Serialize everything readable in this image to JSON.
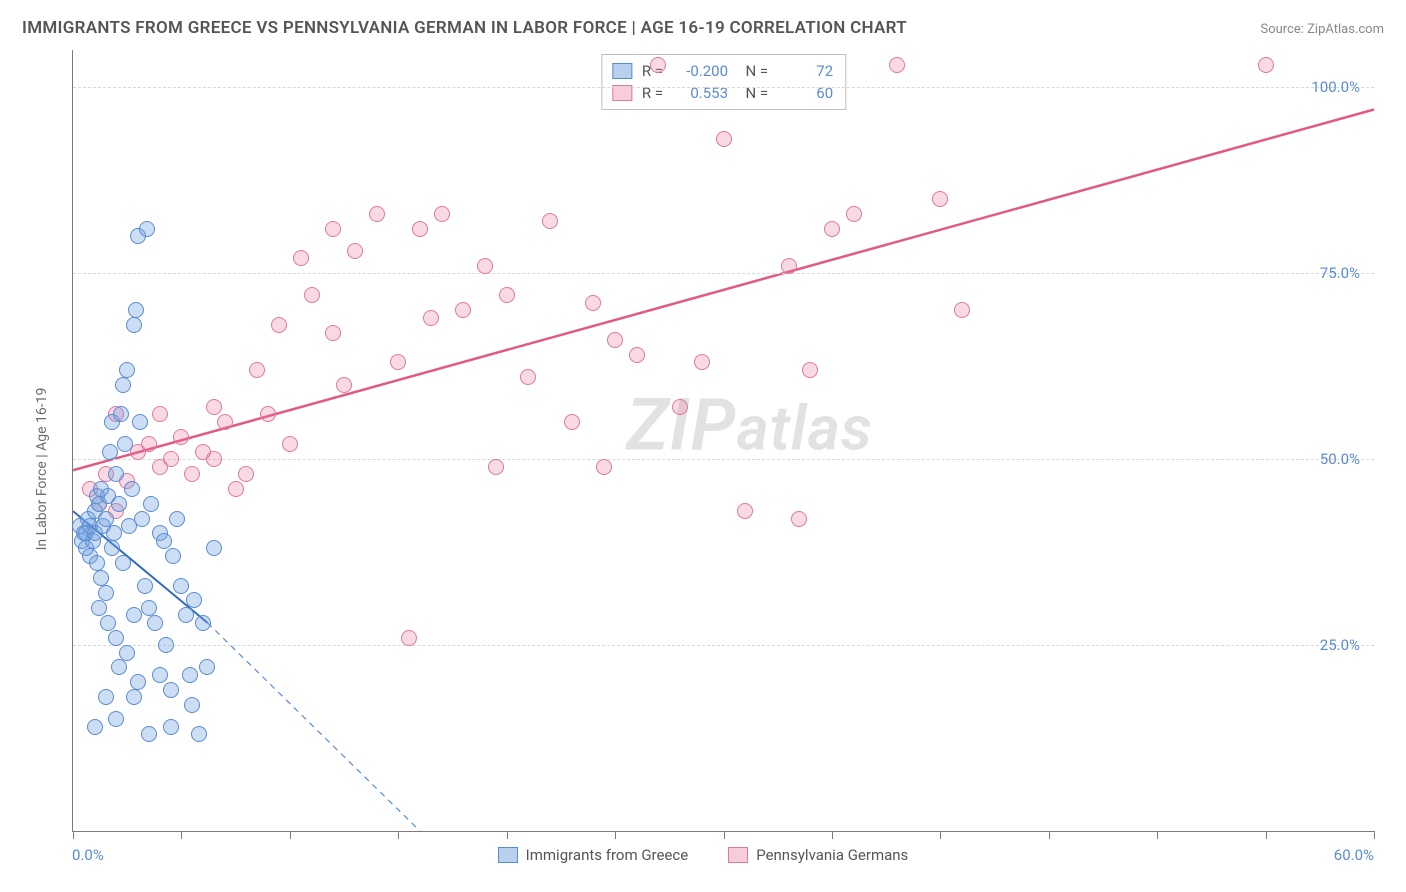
{
  "title": "IMMIGRANTS FROM GREECE VS PENNSYLVANIA GERMAN IN LABOR FORCE | AGE 16-19 CORRELATION CHART",
  "source": "Source: ZipAtlas.com",
  "ylabel": "In Labor Force | Age 16-19",
  "watermark": "ZIPatlas",
  "axes": {
    "xlim": [
      0,
      60
    ],
    "ylim": [
      0,
      105
    ],
    "xticks": [
      0,
      5,
      10,
      15,
      20,
      25,
      30,
      35,
      40,
      45,
      50,
      55,
      60
    ],
    "yticks": [
      25,
      50,
      75,
      100
    ],
    "ytick_labels": [
      "25.0%",
      "50.0%",
      "75.0%",
      "100.0%"
    ],
    "xlabel_min": "0.0%",
    "xlabel_max": "60.0%",
    "grid_color": "#d8d8d8",
    "axis_color": "#7a7a7a"
  },
  "series": {
    "greece": {
      "label": "Immigrants from Greece",
      "fill": "rgba(108,160,220,0.35)",
      "stroke": "#5a8bd6",
      "swatch_fill": "#b9d0ec",
      "swatch_border": "#5a8bd6",
      "R": "-0.200",
      "N": "72",
      "regression": {
        "x1": 0,
        "y1": 43,
        "x2": 6.2,
        "y2": 28,
        "dash_x2": 16,
        "dash_y2": 0,
        "color": "#2f6bc0",
        "width": 2
      },
      "points": [
        [
          0.3,
          41
        ],
        [
          0.4,
          39
        ],
        [
          0.5,
          40
        ],
        [
          0.6,
          40
        ],
        [
          0.6,
          38
        ],
        [
          0.7,
          42
        ],
        [
          0.8,
          41
        ],
        [
          0.8,
          37
        ],
        [
          0.9,
          39
        ],
        [
          1.0,
          40
        ],
        [
          1.0,
          43
        ],
        [
          1.1,
          45
        ],
        [
          1.1,
          36
        ],
        [
          1.2,
          44
        ],
        [
          1.2,
          30
        ],
        [
          1.3,
          46
        ],
        [
          1.3,
          34
        ],
        [
          1.4,
          41
        ],
        [
          1.5,
          42
        ],
        [
          1.5,
          32
        ],
        [
          1.6,
          45
        ],
        [
          1.6,
          28
        ],
        [
          1.7,
          51
        ],
        [
          1.8,
          38
        ],
        [
          1.8,
          55
        ],
        [
          1.9,
          40
        ],
        [
          2.0,
          48
        ],
        [
          2.0,
          26
        ],
        [
          2.1,
          44
        ],
        [
          2.1,
          22
        ],
        [
          2.2,
          56
        ],
        [
          2.3,
          36
        ],
        [
          2.3,
          60
        ],
        [
          2.4,
          52
        ],
        [
          2.5,
          62
        ],
        [
          2.5,
          24
        ],
        [
          2.6,
          41
        ],
        [
          2.7,
          46
        ],
        [
          2.8,
          29
        ],
        [
          2.8,
          68
        ],
        [
          2.9,
          70
        ],
        [
          3.0,
          80
        ],
        [
          3.0,
          20
        ],
        [
          3.1,
          55
        ],
        [
          3.2,
          42
        ],
        [
          3.3,
          33
        ],
        [
          3.4,
          81
        ],
        [
          3.5,
          30
        ],
        [
          3.6,
          44
        ],
        [
          3.8,
          28
        ],
        [
          4.0,
          40
        ],
        [
          4.2,
          39
        ],
        [
          4.3,
          25
        ],
        [
          4.5,
          19
        ],
        [
          4.6,
          37
        ],
        [
          4.8,
          42
        ],
        [
          5.0,
          33
        ],
        [
          5.2,
          29
        ],
        [
          5.4,
          21
        ],
        [
          5.5,
          17
        ],
        [
          5.6,
          31
        ],
        [
          5.8,
          13
        ],
        [
          6.0,
          28
        ],
        [
          6.2,
          22
        ],
        [
          6.5,
          38
        ],
        [
          1.0,
          14
        ],
        [
          1.5,
          18
        ],
        [
          2.0,
          15
        ],
        [
          2.8,
          18
        ],
        [
          3.5,
          13
        ],
        [
          4.0,
          21
        ],
        [
          4.5,
          14
        ]
      ]
    },
    "pagerman": {
      "label": "Pennsylvania Germans",
      "fill": "rgba(233,120,155,0.28)",
      "stroke": "#e2789b",
      "swatch_fill": "#f6cdd9",
      "swatch_border": "#e2789b",
      "R": "0.553",
      "N": "60",
      "regression": {
        "x1": 0,
        "y1": 48.5,
        "x2": 60,
        "y2": 97,
        "color": "#e05a85",
        "width": 2.5
      },
      "points": [
        [
          0.8,
          46
        ],
        [
          1.2,
          44
        ],
        [
          1.5,
          48
        ],
        [
          2.0,
          43
        ],
        [
          2.5,
          47
        ],
        [
          3.0,
          51
        ],
        [
          3.5,
          52
        ],
        [
          4.0,
          49
        ],
        [
          4.5,
          50
        ],
        [
          5.0,
          53
        ],
        [
          5.5,
          48
        ],
        [
          6.0,
          51
        ],
        [
          6.5,
          50
        ],
        [
          7.0,
          55
        ],
        [
          7.5,
          46
        ],
        [
          8.0,
          48
        ],
        [
          9.0,
          56
        ],
        [
          9.5,
          68
        ],
        [
          10.0,
          52
        ],
        [
          10.5,
          77
        ],
        [
          11.0,
          72
        ],
        [
          12.0,
          81
        ],
        [
          12.5,
          60
        ],
        [
          13.0,
          78
        ],
        [
          14.0,
          83
        ],
        [
          15.0,
          63
        ],
        [
          15.5,
          26
        ],
        [
          16.0,
          81
        ],
        [
          16.5,
          69
        ],
        [
          17.0,
          83
        ],
        [
          18.0,
          70
        ],
        [
          19.0,
          76
        ],
        [
          19.5,
          49
        ],
        [
          20.0,
          72
        ],
        [
          21.0,
          61
        ],
        [
          22.0,
          82
        ],
        [
          23.0,
          55
        ],
        [
          24.0,
          71
        ],
        [
          24.5,
          49
        ],
        [
          25.0,
          66
        ],
        [
          26.0,
          64
        ],
        [
          27.0,
          103
        ],
        [
          28.0,
          57
        ],
        [
          29.0,
          63
        ],
        [
          30.0,
          93
        ],
        [
          31.0,
          43
        ],
        [
          33.0,
          76
        ],
        [
          33.5,
          42
        ],
        [
          34.0,
          62
        ],
        [
          35.0,
          81
        ],
        [
          36.0,
          83
        ],
        [
          38.0,
          103
        ],
        [
          40.0,
          85
        ],
        [
          41.0,
          70
        ],
        [
          55.0,
          103
        ],
        [
          2.0,
          56
        ],
        [
          4.0,
          56
        ],
        [
          6.5,
          57
        ],
        [
          8.5,
          62
        ],
        [
          12.0,
          67
        ]
      ]
    }
  },
  "marker_radius": 8,
  "colors": {
    "title": "#555555",
    "source": "#888888",
    "axis_text": "#5a8bd6",
    "body_text": "#6b6b6b",
    "watermark": "#e2e2e2",
    "background": "#ffffff"
  }
}
